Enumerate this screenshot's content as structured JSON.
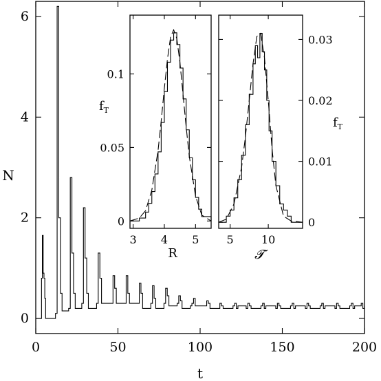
{
  "chart_data": [
    {
      "type": "line",
      "title": "",
      "xlabel": "t",
      "ylabel": "N",
      "xlim": [
        0,
        200
      ],
      "ylim": [
        -0.3,
        6.3
      ],
      "xticks": [
        "0",
        "50",
        "100",
        "150",
        "200"
      ],
      "yticks": [
        "0",
        "2",
        "4",
        "6"
      ],
      "x_tick_values": [
        0,
        50,
        100,
        150,
        200
      ],
      "y_tick_values": [
        0,
        2,
        4,
        6
      ],
      "grid": false,
      "step": true,
      "series": [
        {
          "x": [
            0,
            3.5,
            4,
            4.5,
            5,
            5.5,
            6,
            12,
            13,
            14,
            15,
            16,
            20,
            21,
            22,
            23,
            24,
            28,
            29,
            30,
            31,
            32,
            37,
            38,
            39,
            40,
            46,
            47,
            48,
            49,
            54,
            55,
            56,
            57,
            62,
            63,
            64,
            65,
            70,
            71,
            72,
            73,
            78,
            79,
            80,
            81,
            86,
            87,
            88,
            89,
            94,
            95,
            96,
            97,
            103,
            104,
            105,
            106,
            111,
            112,
            113,
            114,
            120,
            121,
            122,
            123,
            128,
            129,
            130,
            131,
            137,
            138,
            139,
            140,
            146,
            147,
            148,
            149,
            155,
            156,
            157,
            158,
            164,
            165,
            166,
            167,
            173,
            174,
            175,
            176,
            182,
            183,
            184,
            185,
            191,
            192,
            193,
            194,
            198,
            199,
            200
          ],
          "y": [
            0,
            0.8,
            1.65,
            0.9,
            0.8,
            0.4,
            0,
            0.1,
            6.2,
            2.0,
            0.5,
            0.15,
            0.2,
            2.8,
            1.3,
            0.5,
            0.2,
            0.3,
            2.2,
            1.2,
            0.5,
            0.2,
            0.3,
            1.3,
            0.8,
            0.3,
            0.3,
            0.85,
            0.6,
            0.3,
            0.3,
            0.85,
            0.5,
            0.3,
            0.3,
            0.7,
            0.5,
            0.2,
            0.3,
            0.65,
            0.4,
            0.2,
            0.3,
            0.6,
            0.45,
            0.25,
            0.3,
            0.45,
            0.35,
            0.2,
            0.25,
            0.3,
            0.4,
            0.25,
            0.25,
            0.35,
            0.3,
            0.2,
            0.2,
            0.3,
            0.25,
            0.2,
            0.25,
            0.3,
            0.2,
            0.25,
            0.2,
            0.3,
            0.25,
            0.2,
            0.25,
            0.3,
            0.2,
            0.25,
            0.2,
            0.3,
            0.25,
            0.2,
            0.25,
            0.3,
            0.2,
            0.25,
            0.2,
            0.3,
            0.25,
            0.2,
            0.25,
            0.3,
            0.2,
            0.25,
            0.2,
            0.3,
            0.25,
            0.2,
            0.25,
            0.3,
            0.2,
            0.25,
            0.3,
            0.2,
            0.25
          ]
        }
      ]
    },
    {
      "type": "line",
      "title": "",
      "xlabel": "R",
      "ylabel": "f_T",
      "xlim": [
        2.9,
        5.5
      ],
      "ylim": [
        -0.005,
        0.14
      ],
      "xticks": [
        "3",
        "4",
        "5"
      ],
      "yticks": [
        "0",
        "0.05",
        "0.1"
      ],
      "x_tick_values": [
        3,
        4,
        5
      ],
      "y_tick_values": [
        0,
        0.05,
        0.1
      ],
      "grid": false,
      "series": [
        {
          "style": "histogram",
          "x": [
            2.9,
            3.2,
            3.4,
            3.5,
            3.6,
            3.7,
            3.8,
            3.9,
            4.0,
            4.1,
            4.2,
            4.3,
            4.4,
            4.5,
            4.6,
            4.7,
            4.8,
            4.9,
            5.0,
            5.1,
            5.2,
            5.5
          ],
          "y": [
            0.0,
            0.002,
            0.006,
            0.012,
            0.02,
            0.032,
            0.047,
            0.067,
            0.088,
            0.108,
            0.123,
            0.128,
            0.12,
            0.104,
            0.083,
            0.062,
            0.043,
            0.028,
            0.016,
            0.008,
            0.003,
            0.0
          ]
        },
        {
          "style": "dashed",
          "x": [
            2.9,
            3.2,
            3.4,
            3.6,
            3.8,
            3.9,
            4.0,
            4.1,
            4.2,
            4.3,
            4.4,
            4.5,
            4.6,
            4.7,
            4.8,
            5.0,
            5.2,
            5.5
          ],
          "y": [
            0.0,
            0.002,
            0.007,
            0.021,
            0.048,
            0.068,
            0.09,
            0.11,
            0.125,
            0.13,
            0.124,
            0.108,
            0.086,
            0.064,
            0.044,
            0.017,
            0.004,
            0.0
          ]
        }
      ]
    },
    {
      "type": "line",
      "title": "",
      "xlabel": "𝓣",
      "ylabel": "f_T",
      "xlim": [
        3.5,
        14.5
      ],
      "ylim": [
        -0.001,
        0.034
      ],
      "xticks": [
        "5",
        "10"
      ],
      "yticks": [
        "0",
        "0.01",
        "0.02",
        "0.03"
      ],
      "x_tick_values": [
        5,
        10
      ],
      "y_tick_values": [
        0,
        0.01,
        0.02,
        0.03
      ],
      "grid": false,
      "series": [
        {
          "style": "histogram",
          "x": [
            3.5,
            4.5,
            5.0,
            5.5,
            6.0,
            6.5,
            7.0,
            7.5,
            8.0,
            8.3,
            8.6,
            8.9,
            9.2,
            9.5,
            9.8,
            10.1,
            10.5,
            11.0,
            11.5,
            12.0,
            12.5,
            13.0,
            14.5
          ],
          "y": [
            0.0,
            0.001,
            0.002,
            0.004,
            0.007,
            0.011,
            0.016,
            0.021,
            0.026,
            0.029,
            0.027,
            0.031,
            0.028,
            0.025,
            0.02,
            0.015,
            0.01,
            0.006,
            0.003,
            0.002,
            0.001,
            0.0,
            0.0
          ]
        },
        {
          "style": "dashed",
          "x": [
            3.5,
            4.5,
            5.5,
            6.5,
            7.0,
            7.5,
            8.0,
            8.5,
            9.0,
            9.5,
            10.0,
            10.5,
            11.0,
            12.0,
            13.0,
            14.5
          ],
          "y": [
            0.0,
            0.0005,
            0.003,
            0.009,
            0.014,
            0.02,
            0.026,
            0.0305,
            0.031,
            0.027,
            0.02,
            0.012,
            0.006,
            0.001,
            0.0002,
            0.0
          ]
        }
      ]
    }
  ]
}
